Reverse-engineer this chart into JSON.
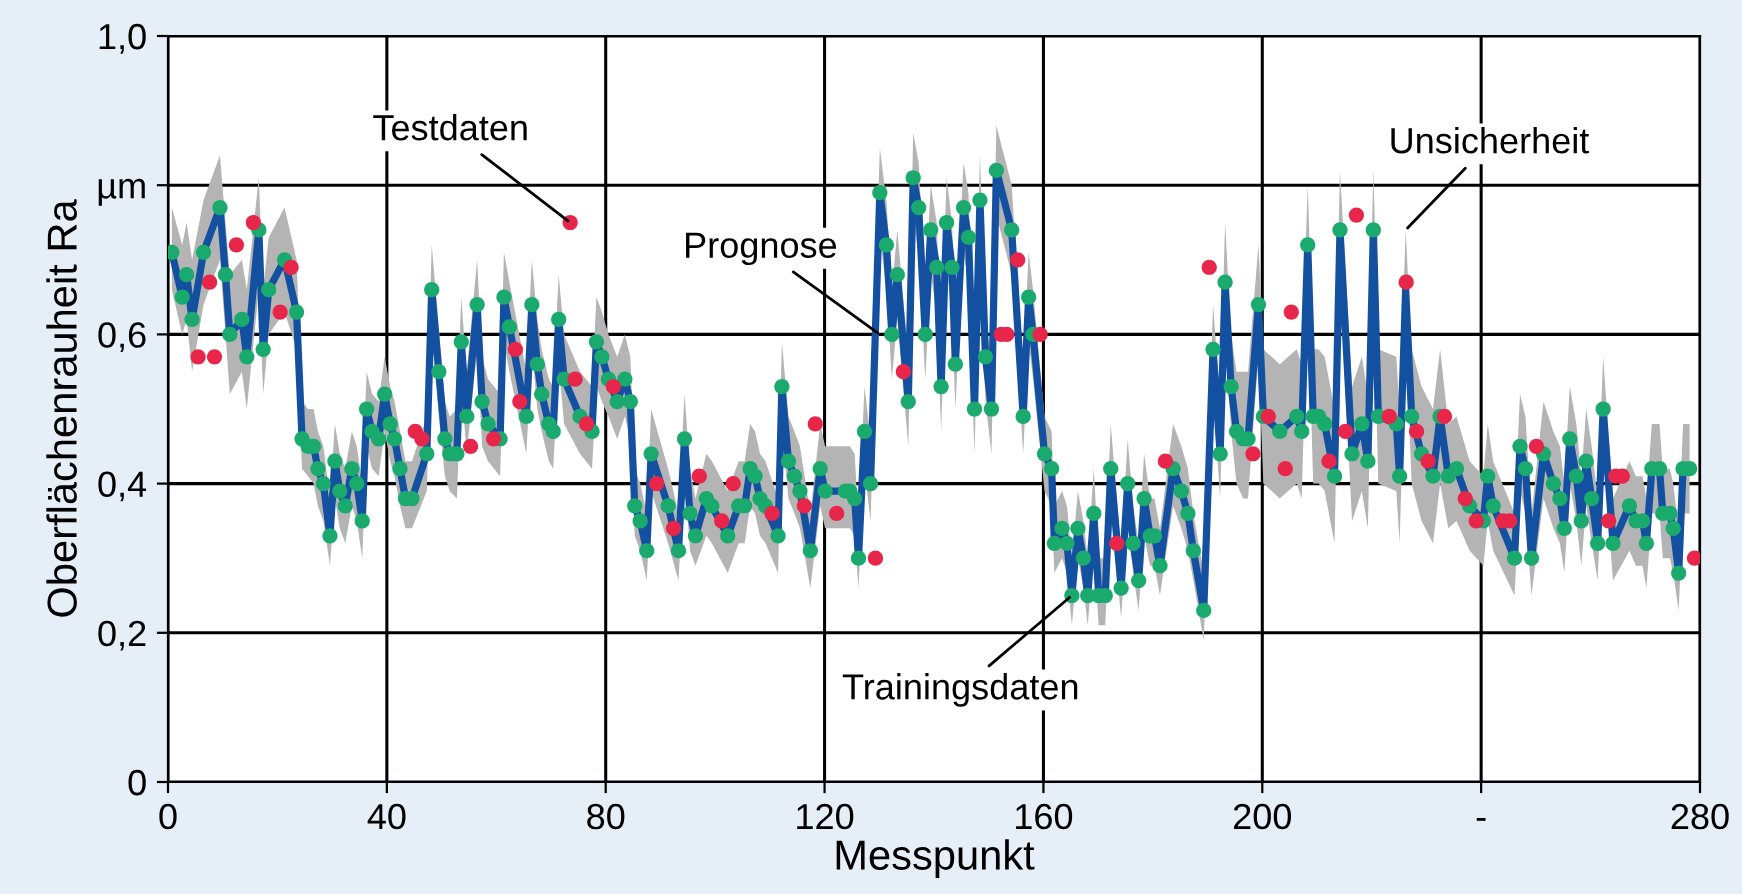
{
  "chart_data": {
    "type": "line",
    "xlabel": "Messpunkt",
    "ylabel": "Oberflächenrauheit Ra",
    "xlim": [
      0,
      280
    ],
    "ylim": [
      0,
      1.0
    ],
    "xticks": [
      0,
      40,
      80,
      120,
      160,
      200,
      {
        "value": 240,
        "label": "-"
      },
      280
    ],
    "yticks": [
      {
        "value": 0,
        "label": "0"
      },
      {
        "value": 0.2,
        "label": "0,2"
      },
      {
        "value": 0.4,
        "label": "0,4"
      },
      {
        "value": 0.6,
        "label": "0,6"
      },
      {
        "value": 0.8,
        "label": "µm"
      },
      {
        "value": 1.0,
        "label": "1,0"
      }
    ],
    "grid": true,
    "legend": false,
    "x": [
      0.7,
      2.6,
      3.4,
      4.4,
      6.5,
      9.5,
      10.5,
      11.3,
      13.5,
      14.4,
      16.6,
      17.4,
      18.4,
      21.3,
      23.5,
      24.5,
      25.6,
      26.6,
      27.4,
      28.4,
      29.6,
      30.5,
      31.4,
      32.4,
      33.6,
      34.5,
      35.5,
      36.3,
      37.3,
      38.5,
      39.6,
      40.6,
      41.4,
      42.4,
      43.4,
      44.6,
      47.3,
      48.2,
      49.5,
      50.6,
      51.5,
      52.8,
      53.6,
      54.6,
      56.5,
      57.4,
      58.5,
      60.7,
      61.4,
      62.4,
      65.5,
      66.5,
      67.5,
      68.3,
      69.6,
      70.4,
      71.4,
      72.4,
      75.3,
      77.5,
      78.3,
      79.3,
      80.5,
      82.1,
      83.5,
      84.5,
      85.3,
      86.3,
      87.5,
      88.3,
      91.4,
      93.3,
      94.4,
      95.4,
      96.4,
      98.4,
      99.4,
      102.3,
      104.3,
      105.4,
      106.4,
      107.3,
      108.2,
      109.2,
      111.5,
      112.2,
      113.4,
      114.5,
      115.5,
      117.4,
      119.2,
      120.1,
      123.8,
      124.6,
      125.5,
      126.2,
      127.3,
      128.4,
      130.1,
      131.3,
      132.3,
      133.3,
      135.3,
      136.2,
      137.2,
      138.4,
      139.4,
      140.5,
      141.3,
      142.3,
      143.3,
      143.9,
      145.4,
      146.3,
      147.4,
      148.4,
      149.4,
      150.5,
      151.4,
      154.2,
      156.3,
      157.3,
      158.1,
      160.2,
      161.5,
      162,
      163.4,
      164.3,
      165.2,
      166.3,
      167.3,
      168.1,
      169.2,
      170.1,
      171.3,
      172.3,
      174.2,
      175.4,
      176.4,
      177.4,
      178.4,
      179.5,
      180.3,
      181.3,
      183.7,
      185.2,
      186.4,
      187.4,
      189.3,
      191,
      192.3,
      193.2,
      194.3,
      195.3,
      196.5,
      197.4,
      199.3,
      200.2,
      203.2,
      206.3,
      207.2,
      208.3,
      209.3,
      210.3,
      211.4,
      213.2,
      214.2,
      216.4,
      218.2,
      219.3,
      220.3,
      221.2,
      224.5,
      225.1,
      226.2,
      227.3,
      229.1,
      231.2,
      232.5,
      234,
      235.5,
      237.9,
      240.4,
      241.2,
      242.2,
      246.1,
      247.1,
      248.1,
      249.2,
      251.4,
      253.2,
      254.4,
      255.2,
      256.2,
      257.4,
      258.3,
      259.2,
      260.2,
      261.3,
      262.3,
      264.1,
      267.1,
      268.3,
      269.5,
      270.2,
      271.2,
      272.6,
      273.2,
      274.5,
      275.1,
      276.1,
      276.9,
      278.1
    ],
    "series": [
      {
        "color": "#1450a0",
        "line_style": "solid",
        "marker": "none",
        "values": [
          0.71,
          0.65,
          0.68,
          0.62,
          0.71,
          0.77,
          0.68,
          0.6,
          0.62,
          0.57,
          0.74,
          0.58,
          0.66,
          0.7,
          0.63,
          0.46,
          0.45,
          0.45,
          0.42,
          0.4,
          0.33,
          0.43,
          0.39,
          0.37,
          0.42,
          0.4,
          0.35,
          0.5,
          0.47,
          0.46,
          0.52,
          0.48,
          0.46,
          0.42,
          0.38,
          0.38,
          0.44,
          0.66,
          0.55,
          0.46,
          0.44,
          0.44,
          0.59,
          0.49,
          0.64,
          0.51,
          0.48,
          0.46,
          0.65,
          0.61,
          0.49,
          0.64,
          0.56,
          0.52,
          0.48,
          0.47,
          0.62,
          0.54,
          0.49,
          0.47,
          0.59,
          0.57,
          0.54,
          0.51,
          0.54,
          0.51,
          0.37,
          0.35,
          0.31,
          0.44,
          0.37,
          0.31,
          0.46,
          0.36,
          0.33,
          0.38,
          0.37,
          0.33,
          0.37,
          0.37,
          0.42,
          0.41,
          0.38,
          0.37,
          0.33,
          0.53,
          0.43,
          0.41,
          0.39,
          0.31,
          0.42,
          0.39,
          0.39,
          0.39,
          0.38,
          0.3,
          0.47,
          0.4,
          0.79,
          0.72,
          0.6,
          0.68,
          0.51,
          0.81,
          0.77,
          0.6,
          0.74,
          0.69,
          0.53,
          0.75,
          0.69,
          0.56,
          0.77,
          0.73,
          0.5,
          0.78,
          0.57,
          0.5,
          0.82,
          0.74,
          0.49,
          0.65,
          0.6,
          0.44,
          0.42,
          0.32,
          0.34,
          0.32,
          0.25,
          0.34,
          0.3,
          0.25,
          0.36,
          0.25,
          0.25,
          0.42,
          0.26,
          0.4,
          0.32,
          0.27,
          0.38,
          0.33,
          0.33,
          0.29,
          0.42,
          0.39,
          0.36,
          0.31,
          0.23,
          0.58,
          0.44,
          0.67,
          0.53,
          0.47,
          0.46,
          0.46,
          0.64,
          0.49,
          0.47,
          0.49,
          0.47,
          0.72,
          0.49,
          0.49,
          0.48,
          0.41,
          0.74,
          0.44,
          0.48,
          0.43,
          0.74,
          0.49,
          0.48,
          0.41,
          0.66,
          0.49,
          0.44,
          0.41,
          0.49,
          0.41,
          0.42,
          0.37,
          0.35,
          0.41,
          0.37,
          0.3,
          0.45,
          0.42,
          0.3,
          0.44,
          0.4,
          0.38,
          0.34,
          0.46,
          0.41,
          0.35,
          0.43,
          0.38,
          0.32,
          0.5,
          0.32,
          0.37,
          0.35,
          0.35,
          0.32,
          0.42,
          0.42,
          0.36,
          0.36,
          0.34,
          0.28,
          0.42,
          0.42
        ],
        "lower": [
          0.66,
          0.6,
          0.62,
          0.55,
          0.64,
          0.7,
          0.6,
          0.52,
          0.55,
          0.5,
          0.66,
          0.52,
          0.6,
          0.63,
          0.58,
          0.42,
          0.41,
          0.4,
          0.37,
          0.35,
          0.29,
          0.38,
          0.34,
          0.32,
          0.37,
          0.35,
          0.3,
          0.45,
          0.42,
          0.41,
          0.47,
          0.43,
          0.41,
          0.37,
          0.34,
          0.34,
          0.39,
          0.6,
          0.49,
          0.41,
          0.39,
          0.38,
          0.53,
          0.44,
          0.58,
          0.45,
          0.43,
          0.41,
          0.59,
          0.55,
          0.44,
          0.58,
          0.5,
          0.47,
          0.43,
          0.42,
          0.56,
          0.48,
          0.44,
          0.42,
          0.53,
          0.51,
          0.49,
          0.46,
          0.49,
          0.46,
          0.33,
          0.31,
          0.27,
          0.39,
          0.32,
          0.27,
          0.41,
          0.31,
          0.29,
          0.33,
          0.32,
          0.28,
          0.32,
          0.32,
          0.37,
          0.36,
          0.33,
          0.32,
          0.28,
          0.47,
          0.38,
          0.36,
          0.34,
          0.26,
          0.37,
          0.34,
          0.34,
          0.34,
          0.33,
          0.26,
          0.42,
          0.35,
          0.73,
          0.66,
          0.54,
          0.62,
          0.45,
          0.75,
          0.71,
          0.54,
          0.68,
          0.63,
          0.47,
          0.69,
          0.63,
          0.5,
          0.71,
          0.67,
          0.44,
          0.72,
          0.51,
          0.44,
          0.76,
          0.68,
          0.44,
          0.59,
          0.54,
          0.39,
          0.37,
          0.28,
          0.3,
          0.28,
          0.21,
          0.3,
          0.26,
          0.21,
          0.31,
          0.21,
          0.21,
          0.37,
          0.22,
          0.35,
          0.28,
          0.23,
          0.33,
          0.29,
          0.29,
          0.25,
          0.37,
          0.34,
          0.31,
          0.27,
          0.19,
          0.52,
          0.38,
          0.61,
          0.47,
          0.4,
          0.38,
          0.38,
          0.57,
          0.4,
          0.38,
          0.4,
          0.38,
          0.66,
          0.4,
          0.4,
          0.39,
          0.32,
          0.67,
          0.35,
          0.39,
          0.34,
          0.67,
          0.4,
          0.39,
          0.32,
          0.6,
          0.4,
          0.35,
          0.32,
          0.4,
          0.34,
          0.35,
          0.31,
          0.29,
          0.35,
          0.31,
          0.25,
          0.39,
          0.36,
          0.25,
          0.38,
          0.34,
          0.32,
          0.28,
          0.4,
          0.35,
          0.29,
          0.37,
          0.32,
          0.27,
          0.44,
          0.27,
          0.31,
          0.29,
          0.29,
          0.26,
          0.36,
          0.36,
          0.3,
          0.3,
          0.28,
          0.23,
          0.36,
          0.36
        ],
        "upper": [
          0.77,
          0.72,
          0.75,
          0.7,
          0.78,
          0.84,
          0.75,
          0.68,
          0.7,
          0.66,
          0.81,
          0.66,
          0.73,
          0.77,
          0.7,
          0.51,
          0.5,
          0.5,
          0.47,
          0.45,
          0.38,
          0.48,
          0.44,
          0.42,
          0.47,
          0.45,
          0.4,
          0.55,
          0.52,
          0.51,
          0.57,
          0.53,
          0.51,
          0.47,
          0.43,
          0.43,
          0.49,
          0.72,
          0.61,
          0.51,
          0.49,
          0.5,
          0.65,
          0.55,
          0.7,
          0.57,
          0.54,
          0.52,
          0.71,
          0.67,
          0.55,
          0.7,
          0.62,
          0.58,
          0.54,
          0.53,
          0.68,
          0.6,
          0.55,
          0.53,
          0.65,
          0.63,
          0.6,
          0.57,
          0.6,
          0.57,
          0.42,
          0.4,
          0.36,
          0.5,
          0.42,
          0.36,
          0.52,
          0.42,
          0.38,
          0.44,
          0.43,
          0.39,
          0.43,
          0.43,
          0.48,
          0.47,
          0.44,
          0.43,
          0.38,
          0.59,
          0.49,
          0.47,
          0.45,
          0.36,
          0.48,
          0.45,
          0.45,
          0.45,
          0.44,
          0.35,
          0.53,
          0.46,
          0.85,
          0.78,
          0.66,
          0.74,
          0.57,
          0.87,
          0.83,
          0.66,
          0.8,
          0.75,
          0.59,
          0.81,
          0.75,
          0.62,
          0.83,
          0.79,
          0.56,
          0.84,
          0.63,
          0.56,
          0.88,
          0.8,
          0.55,
          0.71,
          0.66,
          0.49,
          0.47,
          0.37,
          0.39,
          0.37,
          0.3,
          0.39,
          0.35,
          0.3,
          0.42,
          0.3,
          0.3,
          0.48,
          0.31,
          0.46,
          0.37,
          0.32,
          0.44,
          0.38,
          0.38,
          0.34,
          0.48,
          0.45,
          0.42,
          0.36,
          0.28,
          0.64,
          0.51,
          0.75,
          0.6,
          0.55,
          0.55,
          0.55,
          0.72,
          0.58,
          0.56,
          0.58,
          0.56,
          0.8,
          0.58,
          0.58,
          0.57,
          0.5,
          0.82,
          0.53,
          0.57,
          0.52,
          0.82,
          0.58,
          0.57,
          0.5,
          0.74,
          0.58,
          0.53,
          0.5,
          0.58,
          0.48,
          0.49,
          0.43,
          0.41,
          0.48,
          0.43,
          0.36,
          0.52,
          0.49,
          0.36,
          0.51,
          0.47,
          0.45,
          0.4,
          0.53,
          0.48,
          0.41,
          0.5,
          0.45,
          0.38,
          0.57,
          0.38,
          0.43,
          0.41,
          0.41,
          0.38,
          0.48,
          0.48,
          0.42,
          0.42,
          0.4,
          0.34,
          0.48,
          0.48
        ]
      },
      {
        "type": "scatter",
        "color": "#1aaa6e",
        "marker": "circle",
        "values": [
          0.71,
          0.65,
          0.68,
          0.62,
          0.71,
          0.77,
          0.68,
          0.6,
          0.62,
          0.57,
          0.74,
          0.58,
          0.66,
          0.7,
          0.63,
          0.46,
          0.45,
          0.45,
          0.42,
          0.4,
          0.33,
          0.43,
          0.39,
          0.37,
          0.42,
          0.4,
          0.35,
          0.5,
          0.47,
          0.46,
          0.52,
          0.48,
          0.46,
          0.42,
          0.38,
          0.38,
          0.44,
          0.66,
          0.55,
          0.46,
          0.44,
          0.44,
          0.59,
          0.49,
          0.64,
          0.51,
          0.48,
          0.46,
          0.65,
          0.61,
          0.49,
          0.64,
          0.56,
          0.52,
          0.48,
          0.47,
          0.62,
          0.54,
          0.49,
          0.47,
          0.59,
          0.57,
          0.54,
          0.51,
          0.54,
          0.51,
          0.37,
          0.35,
          0.31,
          0.44,
          0.37,
          0.31,
          0.46,
          0.36,
          0.33,
          0.38,
          0.37,
          0.33,
          0.37,
          0.37,
          0.42,
          0.41,
          0.38,
          0.37,
          0.33,
          0.53,
          0.43,
          0.41,
          0.39,
          0.31,
          0.42,
          0.39,
          0.39,
          0.39,
          0.38,
          0.3,
          0.47,
          0.4,
          0.79,
          0.72,
          0.6,
          0.68,
          0.51,
          0.81,
          0.77,
          0.6,
          0.74,
          0.69,
          0.53,
          0.75,
          0.69,
          0.56,
          0.77,
          0.73,
          0.5,
          0.78,
          0.57,
          0.5,
          0.82,
          0.74,
          0.49,
          0.65,
          0.6,
          0.44,
          0.42,
          0.32,
          0.34,
          0.32,
          0.25,
          0.34,
          0.3,
          0.25,
          0.36,
          0.25,
          0.25,
          0.42,
          0.26,
          0.4,
          0.32,
          0.27,
          0.38,
          0.33,
          0.33,
          0.29,
          0.42,
          0.39,
          0.36,
          0.31,
          0.23,
          0.58,
          0.44,
          0.67,
          0.53,
          0.47,
          0.46,
          0.46,
          0.64,
          0.49,
          0.47,
          0.49,
          0.47,
          0.72,
          0.49,
          0.49,
          0.48,
          0.41,
          0.74,
          0.44,
          0.48,
          0.43,
          0.74,
          0.49,
          0.48,
          0.41,
          null,
          0.49,
          0.44,
          0.41,
          0.49,
          0.41,
          0.42,
          0.37,
          0.35,
          0.41,
          0.37,
          0.3,
          0.45,
          0.42,
          0.3,
          0.44,
          0.4,
          0.38,
          0.34,
          0.46,
          0.41,
          0.35,
          0.43,
          0.38,
          0.32,
          0.5,
          0.32,
          0.37,
          0.35,
          0.35,
          0.32,
          0.42,
          0.42,
          0.36,
          0.36,
          0.34,
          0.28,
          0.42,
          0.42
        ]
      },
      {
        "type": "scatter",
        "color": "#e8264a",
        "marker": "circle",
        "x": [
          5.5,
          7.6,
          8.5,
          12.5,
          15.6,
          20.5,
          22.5,
          45.2,
          46.4,
          55.3,
          59.5,
          63.5,
          64.3,
          73.5,
          74.4,
          76.5,
          81.4,
          89.3,
          92.4,
          97.1,
          101.2,
          103.3,
          110.4,
          116.3,
          118.3,
          122.2,
          129.3,
          134.4,
          152.3,
          153.3,
          155.3,
          159.4,
          173.4,
          182.3,
          190.3,
          198.3,
          201.1,
          204.2,
          205.3,
          212.2,
          215.2,
          217.2,
          223.2,
          226.3,
          228.2,
          230.3,
          233.3,
          237.1,
          239.1,
          244.0,
          245.2,
          250.1,
          263.3,
          264.6,
          265.8,
          279
        ],
        "values": [
          0.57,
          0.67,
          0.57,
          0.72,
          0.75,
          0.63,
          0.69,
          0.47,
          0.46,
          0.45,
          0.46,
          0.58,
          0.51,
          0.75,
          0.54,
          0.48,
          0.53,
          0.4,
          0.34,
          0.41,
          0.35,
          0.4,
          0.36,
          0.37,
          0.48,
          0.36,
          0.3,
          0.55,
          0.6,
          0.6,
          0.7,
          0.6,
          0.32,
          0.43,
          0.69,
          0.44,
          0.49,
          0.42,
          0.63,
          0.43,
          0.47,
          0.76,
          0.49,
          0.67,
          0.47,
          0.43,
          0.49,
          0.38,
          0.35,
          0.35,
          0.35,
          0.45,
          0.35,
          0.41,
          0.41,
          0.3
        ]
      }
    ],
    "annotations": [
      {
        "text": "Testdaten",
        "x": 73.5,
        "y": 0.75
      },
      {
        "text": "Prognose",
        "x": 130.1,
        "y": 0.6
      },
      {
        "text": "Trainingsdaten",
        "x": 165.2,
        "y": 0.25
      },
      {
        "text": "Unsicherheit",
        "x": 226.2,
        "y": 0.74
      }
    ]
  }
}
